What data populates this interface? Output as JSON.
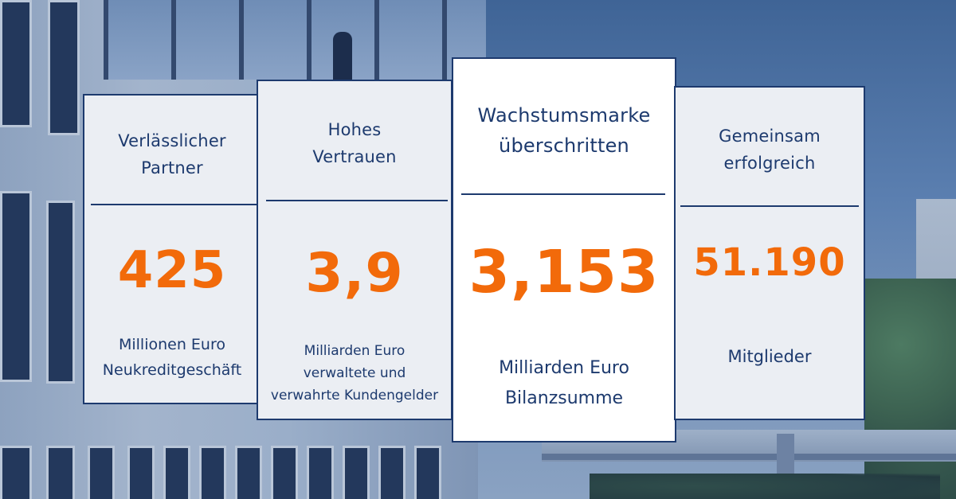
{
  "colors": {
    "card_border": "#1d3a6e",
    "card_text": "#1d3a6e",
    "value_orange": "#f26a0a",
    "card_bg": "#ebeef3",
    "card_highlight_bg": "#ffffff"
  },
  "cards": [
    {
      "title_line1": "Verlässlicher",
      "title_line2": "Partner",
      "value": "425",
      "caption_line1": "Millionen Euro",
      "caption_line2": "Neukreditgeschäft",
      "caption_line3": ""
    },
    {
      "title_line1": "Hohes",
      "title_line2": "Vertrauen",
      "value": "3,9",
      "caption_line1": "Milliarden Euro",
      "caption_line2": "verwaltete und",
      "caption_line3": "verwahrte Kundengelder"
    },
    {
      "title_line1": "Wachstumsmarke",
      "title_line2": "überschritten",
      "value": "3,153",
      "caption_line1": "Milliarden Euro",
      "caption_line2": "Bilanzsumme",
      "caption_line3": ""
    },
    {
      "title_line1": "Gemeinsam",
      "title_line2": "erfolgreich",
      "value": "51.190",
      "caption_line1": "Mitglieder",
      "caption_line2": "",
      "caption_line3": ""
    }
  ]
}
